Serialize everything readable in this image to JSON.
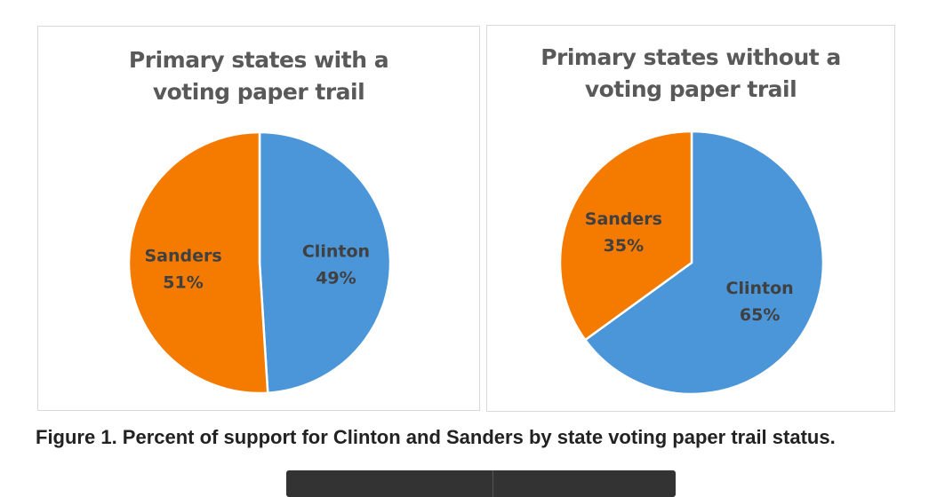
{
  "chart_data": [
    {
      "type": "pie",
      "title": "Primary states with a voting paper trail",
      "slices": [
        {
          "name": "Clinton",
          "value": 49,
          "label": "49%",
          "color": "#4A96D8"
        },
        {
          "name": "Sanders",
          "value": 51,
          "label": "51%",
          "color": "#F57A00"
        }
      ],
      "start_at": "12 o'clock",
      "direction": "clockwise"
    },
    {
      "type": "pie",
      "title": "Primary states without a voting paper trail",
      "slices": [
        {
          "name": "Clinton",
          "value": 65,
          "label": "65%",
          "color": "#4A96D8"
        },
        {
          "name": "Sanders",
          "value": 35,
          "label": "35%",
          "color": "#F57A00"
        }
      ],
      "start_at": "12 o'clock",
      "direction": "clockwise"
    }
  ],
  "caption": "Figure 1. Percent of support for Clinton and Sanders by state voting paper trail status."
}
